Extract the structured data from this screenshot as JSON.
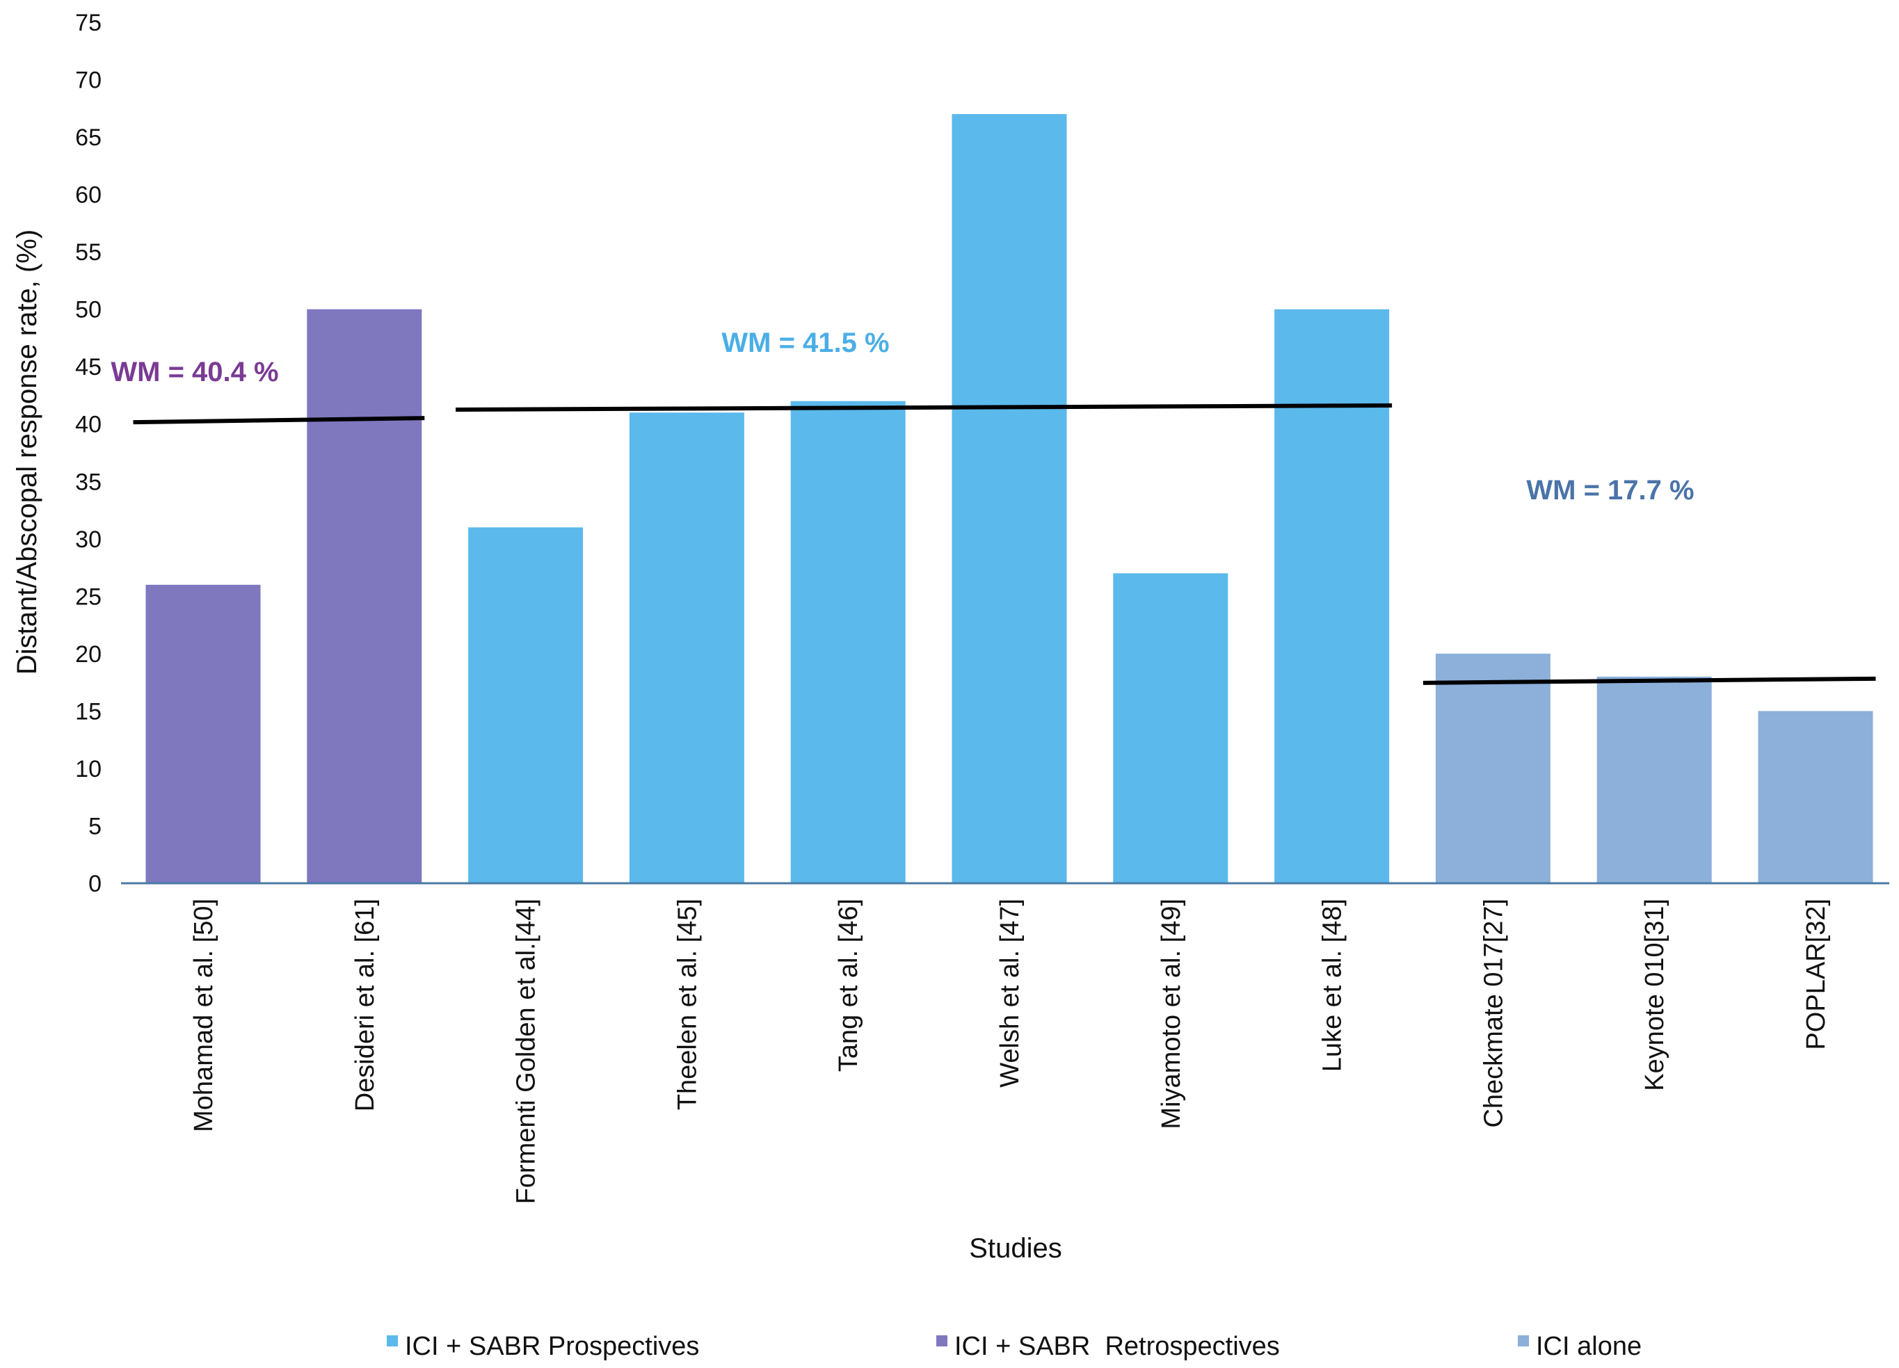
{
  "chart_data": {
    "type": "bar",
    "title": "",
    "xlabel": "Studies",
    "ylabel": "Distant/Abscopal response rate, (%)",
    "ylim": [
      0,
      75
    ],
    "yticks": [
      0,
      5,
      10,
      15,
      20,
      25,
      30,
      35,
      40,
      45,
      50,
      55,
      60,
      65,
      70,
      75
    ],
    "grid": false,
    "categories": [
      "Mohamad et al. [50]",
      "Desideri et al. [61]",
      "Formenti Golden et al.[44]",
      "Theelen et al. [45]",
      "Tang et al. [46]",
      "Welsh et al. [47]",
      "Miyamoto et al. [49]",
      "Luke et al. [48]",
      "Checkmate 017[27]",
      "Keynote 010[31]",
      "POPLAR[32]"
    ],
    "values": [
      26,
      50,
      31,
      41,
      42,
      67,
      27,
      50,
      20,
      18,
      15
    ],
    "groups": [
      "retro",
      "retro",
      "pro",
      "pro",
      "pro",
      "pro",
      "pro",
      "pro",
      "ici",
      "ici",
      "ici"
    ],
    "series": [
      {
        "key": "pro",
        "name": "ICI + SABR Prospectives",
        "color": "#5bb9ec"
      },
      {
        "key": "retro",
        "name": "ICI + SABR  Retrospectives",
        "color": "#7f78bf"
      },
      {
        "key": "ici",
        "name": "ICI alone",
        "color": "#8cb0da"
      }
    ],
    "legend_position": "bottom",
    "annotations": [
      {
        "text": "WM = 40.4 %",
        "value": 40.4,
        "start": 0,
        "end": 1,
        "color": "#7a3b93"
      },
      {
        "text": "WM = 41.5 %",
        "value": 41.5,
        "start": 2,
        "end": 7,
        "color": "#4aaee6"
      },
      {
        "text": "WM = 17.7 %",
        "value": 17.7,
        "start": 8,
        "end": 10,
        "color": "#4a73a8"
      }
    ]
  }
}
